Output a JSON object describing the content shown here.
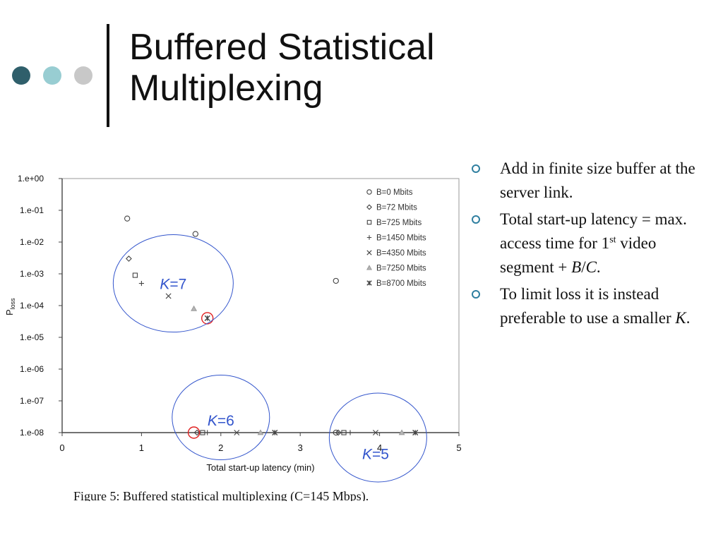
{
  "slide": {
    "title_line1": "Buffered Statistical",
    "title_line2": "Multiplexing",
    "bullets": [
      {
        "text": "Add in finite size buffer at the server link."
      },
      {
        "pre": "Total start-up latency = max. access time for 1",
        "sup": "st",
        "mid": " video segment + ",
        "em1": "B",
        "slash": "/",
        "em2": "C",
        "post": "."
      },
      {
        "pre": "To limit loss it is instead preferable to use a smaller ",
        "em": "K",
        "post": "."
      }
    ]
  },
  "colors": {
    "accent_dark": "#2f5f6b",
    "accent_light": "#98cdd2",
    "accent_gray": "#c8c8c8",
    "circle_blue": "#3355cc",
    "highlight_red": "#e02020",
    "bullet": "#2f7fa0"
  },
  "chart_data": {
    "type": "scatter",
    "caption": "Figure 5:  Buffered statistical multiplexing (C=145 Mbps).",
    "xlabel": "Total start-up latency (min)",
    "ylabel_main": "P",
    "ylabel_sub": "loss",
    "xlim": [
      0,
      5
    ],
    "ylim_exp": [
      -8,
      0
    ],
    "y_scale": "log",
    "x_ticks": [
      "0",
      "1",
      "2",
      "3",
      "4",
      "5"
    ],
    "y_ticks": [
      "1.e+00",
      "1.e-01",
      "1.e-02",
      "1.e-03",
      "1.e-04",
      "1.e-05",
      "1.e-06",
      "1.e-07",
      "1.e-08"
    ],
    "grid": false,
    "legend_position": "top-right",
    "series": [
      {
        "name": "B=0 Mbits",
        "marker": "circle",
        "points": [
          [
            0.82,
            0.055
          ],
          [
            1.68,
            0.018
          ],
          [
            3.45,
            0.0006
          ],
          [
            3.45,
            1e-08
          ]
        ]
      },
      {
        "name": "B=72 Mbits",
        "marker": "diamond",
        "points": [
          [
            0.84,
            0.003
          ],
          [
            1.7,
            1e-08
          ],
          [
            3.48,
            1e-08
          ]
        ]
      },
      {
        "name": "B=725 Mbits",
        "marker": "square",
        "points": [
          [
            0.92,
            0.0009
          ],
          [
            1.77,
            1e-08
          ],
          [
            3.55,
            1e-08
          ]
        ]
      },
      {
        "name": "B=1450 Mbits",
        "marker": "plus",
        "points": [
          [
            1.0,
            0.0005
          ],
          [
            1.83,
            1e-08
          ],
          [
            3.63,
            1e-08
          ]
        ]
      },
      {
        "name": "B=4350 Mbits",
        "marker": "x",
        "points": [
          [
            1.34,
            0.0002
          ],
          [
            2.2,
            1e-08
          ],
          [
            3.95,
            1e-08
          ]
        ]
      },
      {
        "name": "B=7250 Mbits",
        "marker": "triangle",
        "points": [
          [
            1.66,
            8e-05
          ],
          [
            2.5,
            1e-08
          ],
          [
            4.28,
            1e-08
          ]
        ]
      },
      {
        "name": "B=8700 Mbits",
        "marker": "asterisk",
        "points": [
          [
            1.83,
            4e-05
          ],
          [
            2.68,
            1e-08
          ],
          [
            4.45,
            1e-08
          ]
        ]
      }
    ],
    "annotations": [
      {
        "label_italic": "K",
        "label_rest": "=7",
        "center": [
          1.4,
          0.0005
        ],
        "label_at": [
          1.4,
          0.0005
        ]
      },
      {
        "label_italic": "K",
        "label_rest": "=6",
        "center": [
          2.0,
          3e-08
        ],
        "label_at": [
          2.0,
          2.5e-08
        ]
      },
      {
        "label_italic": "K",
        "label_rest": "=5",
        "center": [
          3.98,
          7e-09
        ],
        "label_at": [
          3.95,
          2.2e-09
        ]
      }
    ],
    "highlights": [
      [
        1.66,
        1e-08
      ],
      [
        1.83,
        4e-05
      ]
    ]
  }
}
